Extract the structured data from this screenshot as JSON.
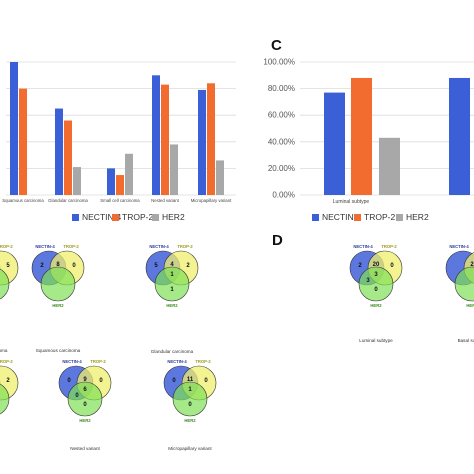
{
  "panel_c_label": "C",
  "panel_d_label": "D",
  "colors": {
    "nectin": "#3a5fd6",
    "trop": "#f26b2f",
    "her2": "#a8a8a8",
    "venn_nectin": "#3f5fd8",
    "venn_trop": "#f0ef6e",
    "venn_her2": "#7fe055"
  },
  "chart_data": [
    {
      "type": "bar",
      "panel": "B",
      "categories": [
        "Squamous carcinoma",
        "Glandular carcinoma",
        "Small cell carcinoma",
        "Nested variant",
        "Micropapillary variant"
      ],
      "series": [
        {
          "name": "NECTIN-4",
          "values": [
            100,
            65,
            20,
            90,
            79
          ]
        },
        {
          "name": "TROP-2",
          "values": [
            80,
            56,
            15,
            83,
            84
          ]
        },
        {
          "name": "HER2",
          "values": [
            0,
            21,
            31,
            38,
            26
          ]
        }
      ],
      "ylim": [
        0,
        100
      ],
      "legend": "bottom"
    },
    {
      "type": "bar",
      "panel": "C",
      "categories": [
        "Luminal subtype",
        ""
      ],
      "series": [
        {
          "name": "NECTIN-4",
          "values": [
            77,
            88
          ]
        },
        {
          "name": "TROP-2",
          "values": [
            88,
            null
          ]
        },
        {
          "name": "HER2",
          "values": [
            43,
            null
          ]
        }
      ],
      "yticks": [
        "0.00%",
        "20.00%",
        "40.00%",
        "60.00%",
        "80.00%",
        "100.00%"
      ],
      "ylim": [
        0,
        100
      ],
      "legend": "bottom"
    }
  ],
  "legend_labels": [
    "NECTIN-4",
    "TROP-2",
    "HER2"
  ],
  "venn": {
    "set_labels": {
      "nectin": "NECTIN-4",
      "trop": "TROP-2",
      "her2": "HER2"
    },
    "diagrams": [
      {
        "caption": "...al Carcinoma",
        "values": {
          "b": "5"
        }
      },
      {
        "caption": "Squamous carcinoma",
        "values": {
          "a": "2",
          "ab": "8",
          "b": "0"
        }
      },
      {
        "caption": "Glandular carcinoma",
        "values": {
          "a": "5",
          "ab": "4",
          "b": "2",
          "abc": "1",
          "c": "1"
        }
      },
      {
        "caption": "Luminal subtype",
        "values": {
          "a": "2",
          "ab": "20",
          "b": "0",
          "ac": "3",
          "abc": "3",
          "c": "0"
        }
      },
      {
        "caption": "Basal subtype",
        "values": {
          "ab": "2"
        }
      },
      {
        "caption": "...ants",
        "values": {
          "b": "2"
        }
      },
      {
        "caption": "Nested variant",
        "values": {
          "a": "0",
          "ab": "9",
          "b": "0",
          "ac": "0",
          "abc": "6",
          "c": "0"
        }
      },
      {
        "caption": "Micropapillary variant",
        "values": {
          "a": "0",
          "ab": "11",
          "b": "0",
          "abc": "1",
          "c": "0"
        }
      }
    ]
  }
}
